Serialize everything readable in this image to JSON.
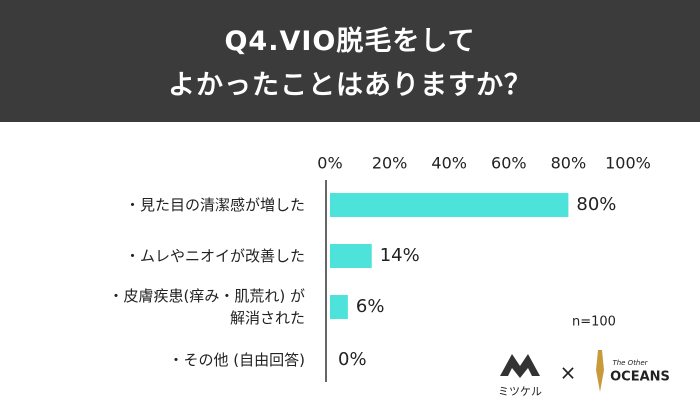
{
  "chart_data": {
    "type": "bar",
    "orientation": "horizontal",
    "title": "Q4.VIO脱毛をして\nよかったことはありますか？",
    "categories": [
      "・見た目の清潔感が増した",
      "・ムレやニオイが改善した",
      "・皮膚疾患(痒み・肌荒れ) が\n解消された",
      "・その他 (自由回答)"
    ],
    "values": [
      80,
      14,
      6,
      0
    ],
    "value_labels": [
      "80%",
      "14%",
      "6%",
      "0%"
    ],
    "color": "#4de3da",
    "xlim": [
      0,
      100
    ],
    "xticks": [
      {
        "value": 0,
        "label": "0%"
      },
      {
        "value": 20,
        "label": "20%"
      },
      {
        "value": 40,
        "label": "40%"
      },
      {
        "value": 60,
        "label": "60%"
      },
      {
        "value": 80,
        "label": "80%"
      },
      {
        "value": 100,
        "label": "100%"
      }
    ],
    "grid": false,
    "annotation": "n=100",
    "logos": [
      "ミツケル",
      "×",
      "The Other",
      "OCEANS"
    ]
  }
}
